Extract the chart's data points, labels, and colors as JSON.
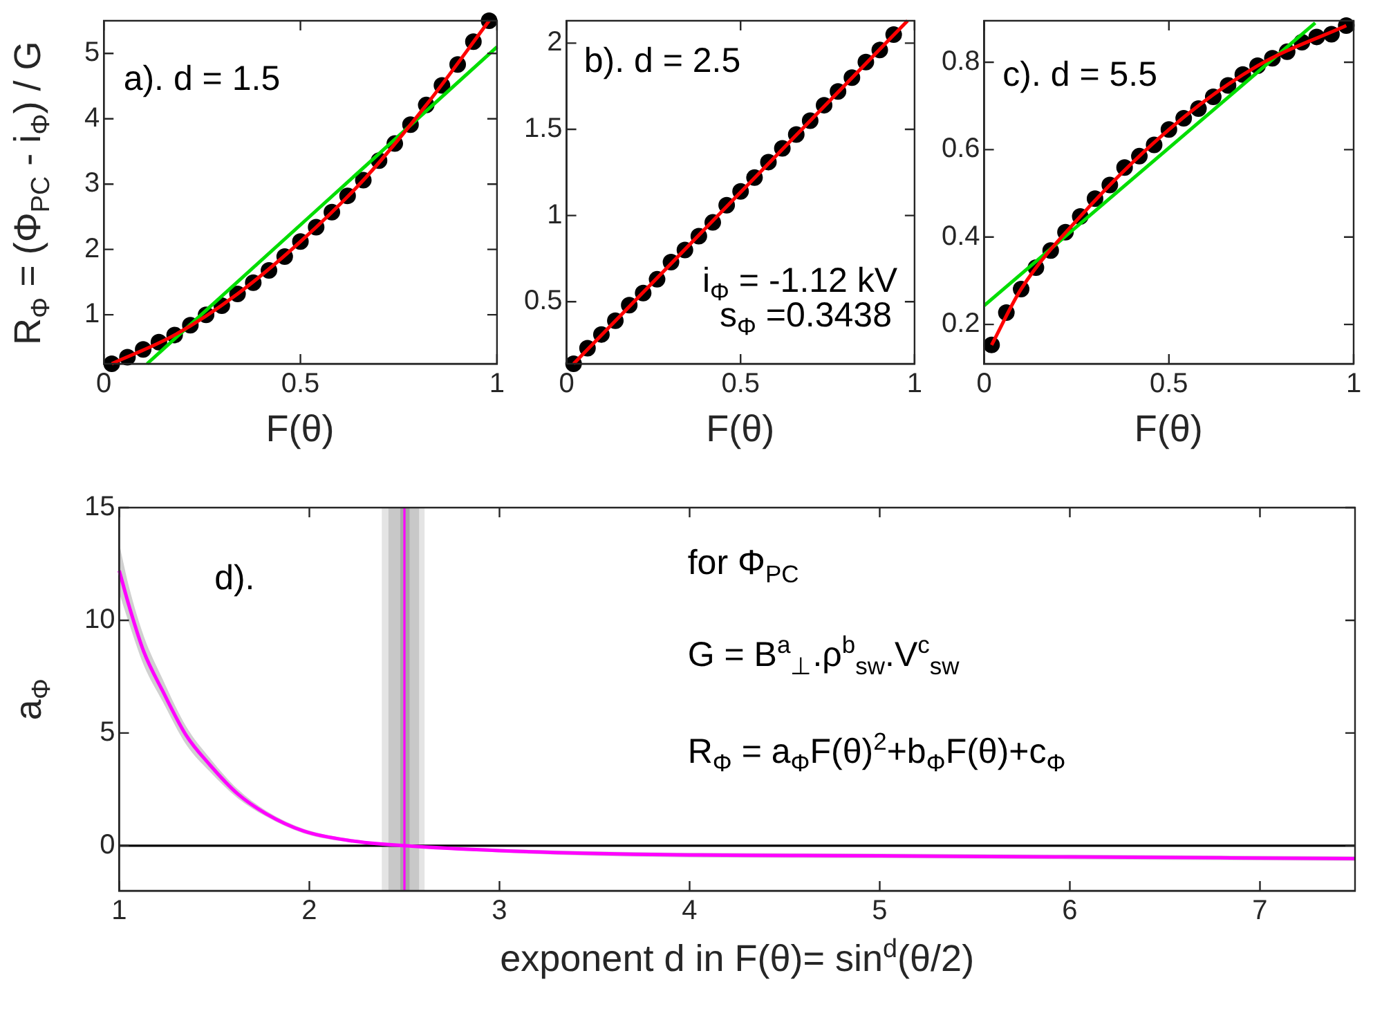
{
  "chart_data": [
    {
      "type": "scatter",
      "xlabel": "F(θ)",
      "ylabel": "R$_{Φ}$ = (Φ$_{PC}$ - i$_{Φ}$) / G",
      "xlim": [
        0,
        1
      ],
      "xticks": [
        0,
        0.5,
        1
      ],
      "ylim": [
        0.25,
        5.5
      ],
      "yticks": [
        1,
        2,
        3,
        4,
        5
      ],
      "grid": false,
      "legend": false,
      "annotations": [
        "a). d = 1.5"
      ],
      "series": [
        {
          "marker": "circle",
          "color": "#000000",
          "x": [
            0.02,
            0.06,
            0.1,
            0.14,
            0.18,
            0.22,
            0.26,
            0.3,
            0.34,
            0.38,
            0.42,
            0.46,
            0.5,
            0.54,
            0.58,
            0.62,
            0.66,
            0.7,
            0.74,
            0.78,
            0.82,
            0.86,
            0.9,
            0.94,
            0.98
          ],
          "values": [
            0.25,
            0.35,
            0.47,
            0.58,
            0.69,
            0.84,
            1.0,
            1.14,
            1.32,
            1.49,
            1.68,
            1.89,
            2.12,
            2.34,
            2.57,
            2.82,
            3.06,
            3.36,
            3.62,
            3.91,
            4.21,
            4.51,
            4.83,
            5.18,
            5.5
          ]
        },
        {
          "type": "line",
          "color": "#ff0000",
          "x": [
            0.02,
            0.18,
            0.34,
            0.5,
            0.66,
            0.82,
            0.98
          ],
          "values": [
            0.25,
            0.69,
            1.32,
            2.12,
            3.06,
            4.21,
            5.5
          ]
        },
        {
          "type": "line",
          "color": "#00dd00",
          "x": [
            0.11,
            1
          ],
          "values": [
            0.25,
            5.1
          ]
        }
      ]
    },
    {
      "type": "scatter",
      "xlabel": "F(θ)",
      "xlim": [
        0,
        1
      ],
      "xticks": [
        0,
        0.5,
        1
      ],
      "ylim": [
        0.14,
        2.13
      ],
      "yticks": [
        0.5,
        1,
        1.5,
        2
      ],
      "grid": false,
      "legend": false,
      "annotations": [
        "b). d = 2.5",
        "i$_{Φ}$ = -1.12 kV",
        "s$_{Φ}$ =0.3438"
      ],
      "series": [
        {
          "marker": "circle",
          "color": "#000000",
          "x": [
            0.02,
            0.06,
            0.1,
            0.14,
            0.18,
            0.22,
            0.26,
            0.3,
            0.34,
            0.38,
            0.42,
            0.46,
            0.5,
            0.54,
            0.58,
            0.62,
            0.66,
            0.7,
            0.74,
            0.78,
            0.82,
            0.86,
            0.9,
            0.94
          ],
          "values": [
            0.14,
            0.23,
            0.31,
            0.39,
            0.48,
            0.55,
            0.63,
            0.73,
            0.8,
            0.88,
            0.96,
            1.06,
            1.14,
            1.22,
            1.31,
            1.39,
            1.47,
            1.55,
            1.64,
            1.72,
            1.8,
            1.89,
            1.96,
            2.05
          ]
        },
        {
          "type": "line",
          "color": "#ff0000",
          "x": [
            0.02,
            0.98
          ],
          "values": [
            0.14,
            2.13
          ]
        }
      ]
    },
    {
      "type": "scatter",
      "xlabel": "F(θ)",
      "xlim": [
        0,
        1
      ],
      "xticks": [
        0,
        0.5,
        1
      ],
      "ylim": [
        0.11,
        0.895
      ],
      "yticks": [
        0.2,
        0.4,
        0.6,
        0.8
      ],
      "grid": false,
      "legend": false,
      "annotations": [
        "c). d = 5.5"
      ],
      "series": [
        {
          "marker": "circle",
          "color": "#000000",
          "x": [
            0.02,
            0.06,
            0.1,
            0.14,
            0.18,
            0.22,
            0.26,
            0.3,
            0.34,
            0.38,
            0.42,
            0.46,
            0.5,
            0.54,
            0.58,
            0.62,
            0.66,
            0.7,
            0.74,
            0.78,
            0.82,
            0.86,
            0.9,
            0.94,
            0.98
          ],
          "values": [
            0.153,
            0.227,
            0.281,
            0.33,
            0.369,
            0.411,
            0.447,
            0.488,
            0.519,
            0.559,
            0.585,
            0.611,
            0.646,
            0.672,
            0.694,
            0.721,
            0.747,
            0.772,
            0.792,
            0.809,
            0.824,
            0.846,
            0.858,
            0.864,
            0.884
          ]
        },
        {
          "type": "line",
          "color": "#ff0000",
          "x": [
            0.02,
            0.1,
            0.26,
            0.5,
            0.74,
            0.98
          ],
          "values": [
            0.153,
            0.281,
            0.447,
            0.646,
            0.792,
            0.884
          ]
        },
        {
          "type": "line",
          "color": "#00dd00",
          "x": [
            0,
            0.896
          ],
          "values": [
            0.243,
            0.89
          ]
        }
      ]
    },
    {
      "type": "line",
      "xlabel": "exponent d in F(θ)= sin$^{d}$(θ/2)",
      "ylabel": "a$_{Φ}$",
      "xlim": [
        1,
        7.5
      ],
      "xticks": [
        1,
        2,
        3,
        4,
        5,
        6,
        7
      ],
      "ylim": [
        -2,
        15
      ],
      "yticks": [
        0,
        5,
        10,
        15
      ],
      "grid": false,
      "legend": false,
      "annotations": [
        "d).",
        "for Φ$_{PC}$",
        "G = B$^{a}$$_{⊥}$.ρ$^{b}$$_{sw}$.V$^{c}$$_{sw}$",
        "R$_{Φ}$ = a$_{Φ}$F(θ)$^{2}$+b$_{Φ}$F(θ)+c$_{Φ}$"
      ],
      "bands": [
        {
          "axis": "x",
          "from": 2.381,
          "to": 2.606,
          "color": "#e4e4e4"
        },
        {
          "axis": "x",
          "from": 2.416,
          "to": 2.577,
          "color": "#c8c8c8"
        },
        {
          "axis": "x",
          "from": 2.478,
          "to": 2.527,
          "color": "#a8a8a8"
        }
      ],
      "ref_lines": [
        {
          "axis": "y",
          "value": 0,
          "color": "#000000"
        },
        {
          "axis": "x",
          "value": 2.5,
          "color": "#ff00ff"
        }
      ],
      "series": [
        {
          "color": "#ff00ff",
          "x": [
            1,
            1.054,
            1.129,
            1.228,
            1.351,
            1.475,
            1.624,
            1.772,
            1.97,
            2.218,
            2.5,
            3,
            3.8,
            5,
            6,
            7.5
          ],
          "values": [
            12.2,
            10.57,
            8.61,
            6.87,
            4.91,
            3.6,
            2.29,
            1.42,
            0.65,
            0.22,
            0,
            -0.22,
            -0.39,
            -0.45,
            -0.5,
            -0.57
          ],
          "lower": [
            11.2,
            9.8,
            8.0,
            6.4,
            4.5,
            3.3,
            2.1,
            1.3,
            0.55,
            0.15,
            -0.05,
            -0.3,
            -0.5,
            -0.55,
            -0.6,
            -0.67
          ],
          "upper": [
            13.4,
            11.4,
            9.3,
            7.4,
            5.3,
            3.9,
            2.5,
            1.55,
            0.75,
            0.3,
            0.05,
            -0.14,
            -0.3,
            -0.35,
            -0.4,
            -0.47
          ]
        }
      ]
    }
  ]
}
